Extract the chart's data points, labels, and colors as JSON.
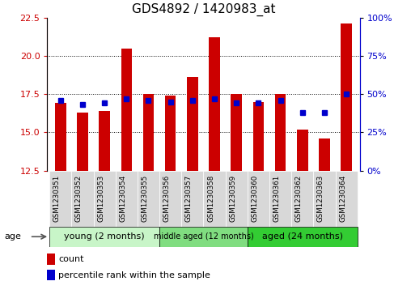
{
  "title": "GDS4892 / 1420983_at",
  "samples": [
    "GSM1230351",
    "GSM1230352",
    "GSM1230353",
    "GSM1230354",
    "GSM1230355",
    "GSM1230356",
    "GSM1230357",
    "GSM1230358",
    "GSM1230359",
    "GSM1230360",
    "GSM1230361",
    "GSM1230362",
    "GSM1230363",
    "GSM1230364"
  ],
  "counts": [
    16.9,
    16.3,
    16.4,
    20.5,
    17.5,
    17.4,
    18.6,
    21.2,
    17.5,
    17.0,
    17.5,
    15.2,
    14.6,
    22.1
  ],
  "percentiles": [
    46,
    43,
    44,
    47,
    46,
    45,
    46,
    47,
    44,
    44,
    46,
    38,
    38,
    50
  ],
  "ylim": [
    12.5,
    22.5
  ],
  "yticks": [
    12.5,
    15.0,
    17.5,
    20.0,
    22.5
  ],
  "right_yticks": [
    0,
    25,
    50,
    75,
    100
  ],
  "right_ylim": [
    0,
    100
  ],
  "bar_color": "#cc0000",
  "percentile_color": "#0000cc",
  "groups": [
    {
      "label": "young (2 months)",
      "start": 0,
      "end": 5,
      "color": "#c8f5c8"
    },
    {
      "label": "middle aged (12 months)",
      "start": 5,
      "end": 9,
      "color": "#80dd80"
    },
    {
      "label": "aged (24 months)",
      "start": 9,
      "end": 14,
      "color": "#33cc33"
    }
  ],
  "xlabel_age": "age",
  "legend_count": "count",
  "legend_pct": "percentile rank within the sample",
  "bar_width": 0.5,
  "bg_color": "#ffffff",
  "tick_color_left": "#cc0000",
  "tick_color_right": "#0000cc",
  "xlabel_bg": "#d8d8d8",
  "title_fontsize": 11
}
